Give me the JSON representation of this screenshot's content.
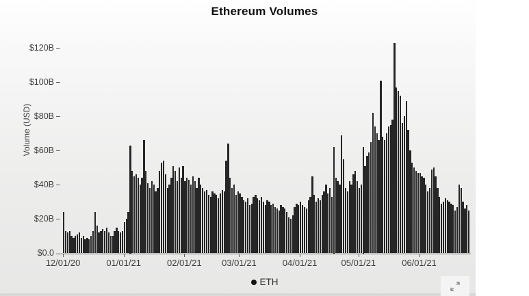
{
  "title": "Ethereum Volumes",
  "y_axis": {
    "label": "Volume (USD)",
    "ticks": [
      {
        "label": "$120B",
        "value": 120
      },
      {
        "label": "$100B",
        "value": 100
      },
      {
        "label": "$80B",
        "value": 80
      },
      {
        "label": "$60B",
        "value": 60
      },
      {
        "label": "$40B",
        "value": 40
      },
      {
        "label": "$20B",
        "value": 20
      },
      {
        "label": "$0.0",
        "value": 0
      }
    ]
  },
  "x_axis": {
    "ticks": [
      {
        "label": "12/01/20",
        "day_index": 0
      },
      {
        "label": "01/01/21",
        "day_index": 31
      },
      {
        "label": "02/01/21",
        "day_index": 62
      },
      {
        "label": "03/01/21",
        "day_index": 90
      },
      {
        "label": "04/01/21",
        "day_index": 121
      },
      {
        "label": "05/01/21",
        "day_index": 151
      },
      {
        "label": "06/01/21",
        "day_index": 182
      }
    ]
  },
  "legend": {
    "items": [
      {
        "label": "ETH",
        "marker": "filled-circle",
        "color": "#141414"
      }
    ]
  },
  "controls": {
    "expand_icon": "expand-diagonal-arrows"
  },
  "colors": {
    "bar": "#262626",
    "axis": "#5f5f5f",
    "tick_text": "#3d3d3d",
    "panel_top": "#fefefe",
    "panel_bottom": "#e7e7e6"
  },
  "chart_data": {
    "type": "bar",
    "title": "Ethereum Volumes",
    "xlabel": "",
    "ylabel": "Volume (USD)",
    "unit": "billions USD per day",
    "ylim": [
      0,
      130
    ],
    "y_tick_values": [
      0,
      20,
      40,
      60,
      80,
      100,
      120
    ],
    "x_tick_labels": [
      "12/01/20",
      "01/01/21",
      "02/01/21",
      "03/01/21",
      "04/01/21",
      "05/01/21",
      "06/01/21"
    ],
    "x_tick_indices": [
      0,
      31,
      62,
      90,
      121,
      151,
      182
    ],
    "x_start_label": "12/01/20",
    "x_end_label_approx": "06/26/21",
    "grid": false,
    "legend_position": "bottom",
    "series": [
      {
        "name": "ETH",
        "color": "#262626",
        "values": [
          24,
          13,
          12,
          13,
          10,
          9,
          10,
          11,
          12,
          9,
          10,
          8,
          9,
          8,
          10,
          13,
          24,
          16,
          12,
          13,
          14,
          13,
          15,
          12,
          10,
          10,
          13,
          15,
          13,
          12,
          13,
          18,
          20,
          24,
          63,
          48,
          45,
          46,
          44,
          40,
          44,
          66,
          48,
          41,
          38,
          42,
          40,
          36,
          38,
          48,
          53,
          54,
          46,
          38,
          40,
          44,
          51,
          48,
          42,
          50,
          44,
          51,
          42,
          44,
          43,
          40,
          45,
          42,
          38,
          44,
          40,
          38,
          36,
          37,
          34,
          33,
          36,
          35,
          34,
          32,
          35,
          37,
          36,
          54,
          64,
          44,
          38,
          40,
          34,
          36,
          35,
          33,
          31,
          30,
          32,
          28,
          29,
          33,
          34,
          32,
          31,
          33,
          30,
          28,
          31,
          30,
          28,
          29,
          27,
          26,
          25,
          28,
          27,
          26,
          24,
          21,
          20,
          22,
          27,
          29,
          28,
          30,
          28,
          27,
          26,
          31,
          33,
          45,
          34,
          30,
          32,
          31,
          34,
          36,
          40,
          35,
          38,
          33,
          62,
          44,
          42,
          40,
          69,
          55,
          38,
          36,
          42,
          40,
          46,
          48,
          42,
          38,
          40,
          62,
          51,
          57,
          59,
          65,
          82,
          74,
          70,
          66,
          101,
          68,
          66,
          70,
          74,
          75,
          78,
          123,
          97,
          95,
          92,
          76,
          80,
          89,
          72,
          60,
          53,
          50,
          48,
          47,
          47,
          45,
          44,
          40,
          36,
          38,
          49,
          50,
          45,
          38,
          33,
          29,
          30,
          32,
          31,
          30,
          29,
          28,
          25,
          27,
          40,
          38,
          30,
          26,
          28,
          25
        ]
      }
    ]
  }
}
